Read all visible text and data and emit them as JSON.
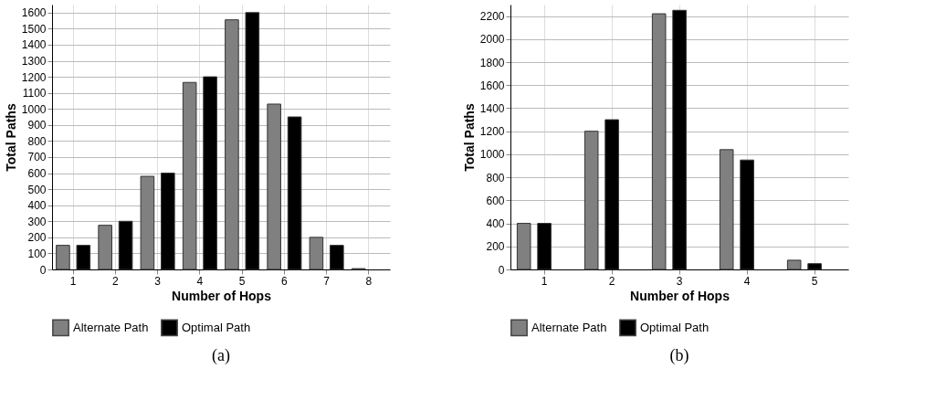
{
  "chart_data": [
    {
      "type": "bar",
      "xlabel": "Number of Hops",
      "ylabel": "Total Paths",
      "categories": [
        "1",
        "2",
        "3",
        "4",
        "5",
        "6",
        "7",
        "8"
      ],
      "series": [
        {
          "name": "Alternate Path",
          "color": "#808080",
          "values": [
            150,
            275,
            580,
            1165,
            1555,
            1030,
            200,
            5
          ]
        },
        {
          "name": "Optimal Path",
          "color": "#000000",
          "values": [
            150,
            300,
            600,
            1200,
            1600,
            950,
            150,
            null
          ]
        }
      ],
      "ylim": [
        0,
        1650
      ],
      "yticks": [
        0,
        100,
        200,
        300,
        400,
        500,
        600,
        700,
        800,
        900,
        1000,
        1100,
        1200,
        1300,
        1400,
        1500,
        1600
      ],
      "grid": true,
      "legend": "bottom",
      "annotations": [
        "(a)"
      ]
    },
    {
      "type": "bar",
      "xlabel": "Number of Hops",
      "ylabel": "Total Paths",
      "categories": [
        "1",
        "2",
        "3",
        "4",
        "5"
      ],
      "series": [
        {
          "name": "Alternate Path",
          "color": "#808080",
          "values": [
            400,
            1200,
            2220,
            1040,
            80
          ]
        },
        {
          "name": "Optimal Path",
          "color": "#000000",
          "values": [
            400,
            1300,
            2250,
            950,
            50
          ]
        }
      ],
      "ylim": [
        0,
        2300
      ],
      "yticks": [
        0,
        200,
        400,
        600,
        800,
        1000,
        1200,
        1400,
        1600,
        1800,
        2000,
        2200
      ],
      "grid": true,
      "legend": "bottom",
      "annotations": [
        "(b)"
      ]
    }
  ]
}
